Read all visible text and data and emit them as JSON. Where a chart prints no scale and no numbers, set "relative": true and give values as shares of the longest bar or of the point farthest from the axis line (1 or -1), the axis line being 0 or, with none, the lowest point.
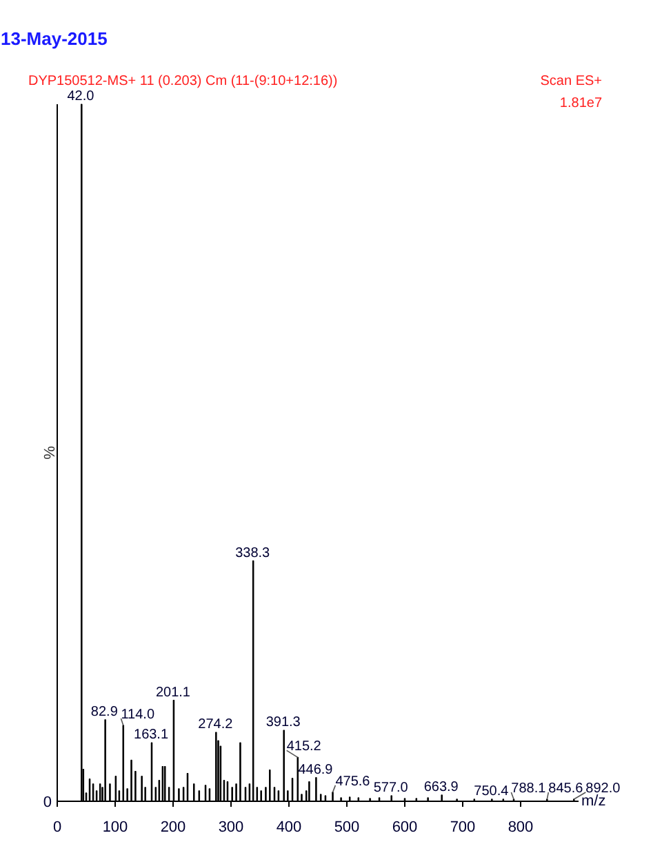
{
  "chart_data": {
    "type": "bar",
    "title": "13-May-2015",
    "subtitle": "DYP150512-MS+ 11 (0.203) Cm (11-(9:10+12:16))",
    "xlabel": "m/z",
    "ylabel": "%",
    "relative": true,
    "color": "#000000",
    "xlim": [
      0,
      900
    ],
    "xticks": [
      0,
      100,
      200,
      300,
      400,
      500,
      600,
      700,
      800
    ],
    "x": [
      42.0,
      45,
      50,
      56,
      62,
      68,
      74,
      78,
      82.9,
      91,
      101,
      107,
      114.0,
      121,
      128,
      135,
      146,
      152,
      163.1,
      170,
      176,
      182,
      186,
      193,
      201.1,
      210,
      218,
      225,
      236,
      245,
      256,
      263,
      274.2,
      278,
      282,
      288,
      294,
      302,
      309,
      316,
      325,
      332,
      338.3,
      345,
      352,
      360,
      367,
      375,
      382,
      391.3,
      398,
      406,
      415.2,
      422,
      430,
      435,
      446.9,
      455,
      463,
      475.6,
      490,
      505,
      520,
      540,
      556,
      577.0,
      600,
      620,
      640,
      663.9,
      690,
      720,
      750.4,
      770,
      788.1,
      845.6,
      892.0
    ],
    "values": [
      1.0,
      0.046,
      0.012,
      0.032,
      0.025,
      0.015,
      0.025,
      0.02,
      0.117,
      0.025,
      0.036,
      0.015,
      0.109,
      0.018,
      0.059,
      0.043,
      0.036,
      0.02,
      0.084,
      0.02,
      0.03,
      0.05,
      0.05,
      0.02,
      0.145,
      0.018,
      0.02,
      0.04,
      0.025,
      0.015,
      0.023,
      0.018,
      0.099,
      0.087,
      0.079,
      0.03,
      0.028,
      0.02,
      0.025,
      0.084,
      0.02,
      0.025,
      0.345,
      0.02,
      0.015,
      0.02,
      0.045,
      0.02,
      0.015,
      0.102,
      0.015,
      0.033,
      0.063,
      0.01,
      0.015,
      0.028,
      0.034,
      0.01,
      0.008,
      0.013,
      0.005,
      0.006,
      0.005,
      0.004,
      0.005,
      0.008,
      0.004,
      0.004,
      0.005,
      0.009,
      0.003,
      0.003,
      0.003,
      0.003,
      0.003,
      0.003,
      0.003
    ],
    "annotations": [
      "Scan ES+",
      "1.81e7",
      "0",
      {
        "text": "42.0",
        "x": 42.0,
        "y": 1.0
      },
      {
        "text": "82.9",
        "x": 82.9,
        "y": 0.117
      },
      {
        "text": "114.0",
        "x": 114.0,
        "y": 0.109
      },
      {
        "text": "163.1",
        "x": 163.1,
        "y": 0.084
      },
      {
        "text": "201.1",
        "x": 201.1,
        "y": 0.145
      },
      {
        "text": "274.2",
        "x": 274.2,
        "y": 0.099
      },
      {
        "text": "338.3",
        "x": 338.3,
        "y": 0.345
      },
      {
        "text": "391.3",
        "x": 391.3,
        "y": 0.102
      },
      {
        "text": "415.2",
        "x": 415.2,
        "y": 0.063
      },
      {
        "text": "446.9",
        "x": 446.9,
        "y": 0.034
      },
      {
        "text": "475.6",
        "x": 475.6,
        "y": 0.013
      },
      {
        "text": "577.0",
        "x": 577.0,
        "y": 0.008
      },
      {
        "text": "663.9",
        "x": 663.9,
        "y": 0.009
      },
      {
        "text": "750.4",
        "x": 750.4,
        "y": 0.003
      },
      {
        "text": "788.1",
        "x": 788.1,
        "y": 0.003
      },
      {
        "text": "845.6",
        "x": 845.6,
        "y": 0.003
      },
      {
        "text": "892.0",
        "x": 892.0,
        "y": 0.003
      }
    ]
  }
}
